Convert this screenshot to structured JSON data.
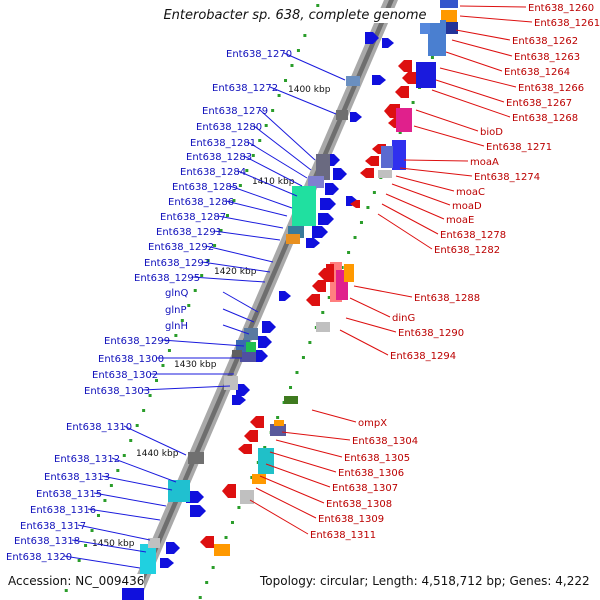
{
  "title": "Enterobacter sp. 638, complete genome",
  "accession": "Accession: NC_009436",
  "summary": "Topology: circular; Length: 4,518,712 bp; Genes: 4,222",
  "colors": {
    "forward_label": "#0000cc",
    "reverse_label": "#cc0000",
    "backbone": "#888888"
  },
  "ticks": [
    "1400 kbp",
    "1410 kbp",
    "1420 kbp",
    "1430 kbp",
    "1440 kbp",
    "1450 kbp"
  ],
  "left_labels": [
    "Ent638_1270",
    "Ent638_1272",
    "Ent638_1279",
    "Ent638_1280",
    "Ent638_1281",
    "Ent638_1283",
    "Ent638_1284",
    "Ent638_1285",
    "Ent638_1286",
    "Ent638_1287",
    "Ent638_1291",
    "Ent638_1292",
    "Ent638_1293",
    "Ent638_1295",
    "glnQ",
    "glnP",
    "glnH",
    "Ent638_1299",
    "Ent638_1300",
    "Ent638_1302",
    "Ent638_1303",
    "Ent638_1310",
    "Ent638_1312",
    "Ent638_1313",
    "Ent638_1315",
    "Ent638_1316",
    "Ent638_1317",
    "Ent638_1318",
    "Ent638_1320"
  ],
  "right_labels": [
    "Ent638_1260",
    "Ent638_1261",
    "Ent638_1262",
    "Ent638_1263",
    "Ent638_1264",
    "Ent638_1266",
    "Ent638_1267",
    "Ent638_1268",
    "bioD",
    "Ent638_1271",
    "moaA",
    "Ent638_1274",
    "moaC",
    "moaD",
    "moaE",
    "Ent638_1278",
    "Ent638_1282",
    "Ent638_1288",
    "dinG",
    "Ent638_1290",
    "Ent638_1294",
    "ompX",
    "Ent638_1304",
    "Ent638_1305",
    "Ent638_1306",
    "Ent638_1307",
    "Ent638_1308",
    "Ent638_1309",
    "Ent638_1311"
  ]
}
